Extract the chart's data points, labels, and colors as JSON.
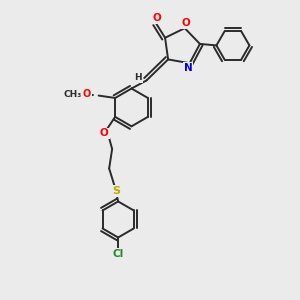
{
  "bg_color": "#ebebeb",
  "bond_color": "#2a2a2a",
  "atom_colors": {
    "O": "#ff0000",
    "N": "#0000ee",
    "S": "#bbaa00",
    "Cl": "#228B22",
    "C": "#2a2a2a",
    "H": "#2a2a2a"
  },
  "figsize": [
    3.0,
    3.0
  ],
  "dpi": 100,
  "lw": 1.4
}
